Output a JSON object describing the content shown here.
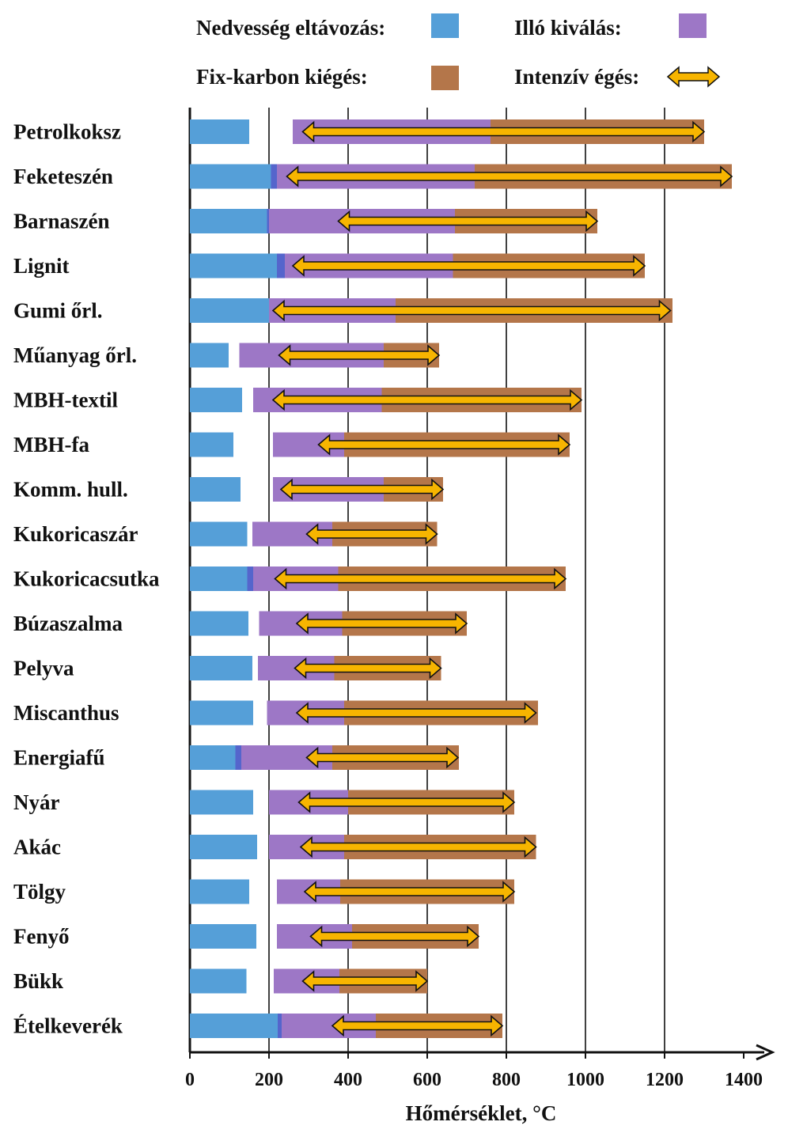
{
  "chart_data": {
    "type": "bar",
    "xlabel": "Hőmérséklet, °C",
    "xlim": [
      0,
      1400
    ],
    "xticks": [
      "0",
      "200",
      "400",
      "600",
      "800",
      "1000",
      "1200",
      "1400"
    ],
    "grid": "vertical",
    "legend_placement": "top",
    "legend": {
      "moisture": {
        "label": "Nedvesség eltávozás:",
        "color": "#559fd8"
      },
      "volatile": {
        "label": "Illó kiválás:",
        "color": "#9d77c6"
      },
      "fixcarbon": {
        "label": "Fix-karbon kiégés:",
        "color": "#b4764a"
      },
      "intensive": {
        "label": "Intenzív égés:",
        "color": "#f7b500"
      }
    },
    "colors": {
      "overlap": "#5565cc",
      "arrow_outline": "#111111"
    },
    "categories": [
      {
        "name": "Petrolkoksz",
        "moisture": [
          0,
          150
        ],
        "volatile": [
          260,
          760
        ],
        "fixcarbon": [
          760,
          1300
        ],
        "intensive": [
          285,
          1300
        ],
        "overlap": null
      },
      {
        "name": "Feketeszén",
        "moisture": [
          0,
          205
        ],
        "volatile": [
          205,
          720
        ],
        "fixcarbon": [
          720,
          1370
        ],
        "intensive": [
          245,
          1370
        ],
        "overlap": [
          205,
          220
        ]
      },
      {
        "name": "Barnaszén",
        "moisture": [
          0,
          195
        ],
        "volatile": [
          195,
          670
        ],
        "fixcarbon": [
          670,
          1030
        ],
        "intensive": [
          375,
          1030
        ],
        "overlap": [
          195,
          200
        ]
      },
      {
        "name": "Lignit",
        "moisture": [
          0,
          220
        ],
        "volatile": [
          220,
          665
        ],
        "fixcarbon": [
          665,
          1150
        ],
        "intensive": [
          260,
          1150
        ],
        "overlap": [
          220,
          240
        ]
      },
      {
        "name": "Gumi őrl.",
        "moisture": [
          0,
          200
        ],
        "volatile": [
          200,
          520
        ],
        "fixcarbon": [
          520,
          1220
        ],
        "intensive": [
          210,
          1215
        ],
        "overlap": null
      },
      {
        "name": "Műanyag őrl.",
        "moisture": [
          0,
          98
        ],
        "volatile": [
          125,
          490
        ],
        "fixcarbon": [
          490,
          630
        ],
        "intensive": [
          225,
          630
        ],
        "overlap": null
      },
      {
        "name": "MBH-textil",
        "moisture": [
          0,
          132
        ],
        "volatile": [
          160,
          485
        ],
        "fixcarbon": [
          485,
          990
        ],
        "intensive": [
          210,
          990
        ],
        "overlap": null
      },
      {
        "name": "MBH-fa",
        "moisture": [
          0,
          110
        ],
        "volatile": [
          210,
          390
        ],
        "fixcarbon": [
          390,
          960
        ],
        "intensive": [
          325,
          960
        ],
        "overlap": null
      },
      {
        "name": "Komm. hull.",
        "moisture": [
          0,
          128
        ],
        "volatile": [
          210,
          490
        ],
        "fixcarbon": [
          490,
          640
        ],
        "intensive": [
          230,
          640
        ],
        "overlap": null
      },
      {
        "name": "Kukoricaszár",
        "moisture": [
          0,
          145
        ],
        "volatile": [
          158,
          360
        ],
        "fixcarbon": [
          360,
          625
        ],
        "intensive": [
          295,
          625
        ],
        "overlap": null
      },
      {
        "name": "Kukoricacsutka",
        "moisture": [
          0,
          145
        ],
        "volatile": [
          145,
          375
        ],
        "fixcarbon": [
          375,
          950
        ],
        "intensive": [
          215,
          950
        ],
        "overlap": [
          145,
          160
        ]
      },
      {
        "name": "Búzaszalma",
        "moisture": [
          0,
          148
        ],
        "volatile": [
          175,
          385
        ],
        "fixcarbon": [
          385,
          700
        ],
        "intensive": [
          270,
          700
        ],
        "overlap": null
      },
      {
        "name": "Pelyva",
        "moisture": [
          0,
          158
        ],
        "volatile": [
          172,
          365
        ],
        "fixcarbon": [
          365,
          635
        ],
        "intensive": [
          265,
          635
        ],
        "overlap": null
      },
      {
        "name": "Miscanthus",
        "moisture": [
          0,
          160
        ],
        "volatile": [
          195,
          390
        ],
        "fixcarbon": [
          390,
          880
        ],
        "intensive": [
          270,
          875
        ],
        "overlap": null
      },
      {
        "name": "Energiafű",
        "moisture": [
          0,
          115
        ],
        "volatile": [
          115,
          360
        ],
        "fixcarbon": [
          360,
          680
        ],
        "intensive": [
          295,
          678
        ],
        "overlap": [
          115,
          130
        ]
      },
      {
        "name": "Nyár",
        "moisture": [
          0,
          160
        ],
        "volatile": [
          200,
          400
        ],
        "fixcarbon": [
          400,
          820
        ],
        "intensive": [
          275,
          820
        ],
        "overlap": null
      },
      {
        "name": "Akác",
        "moisture": [
          0,
          170
        ],
        "volatile": [
          200,
          390
        ],
        "fixcarbon": [
          390,
          875
        ],
        "intensive": [
          280,
          875
        ],
        "overlap": null
      },
      {
        "name": "Tölgy",
        "moisture": [
          0,
          150
        ],
        "volatile": [
          220,
          380
        ],
        "fixcarbon": [
          380,
          820
        ],
        "intensive": [
          290,
          820
        ],
        "overlap": null
      },
      {
        "name": "Fenyő",
        "moisture": [
          0,
          168
        ],
        "volatile": [
          220,
          410
        ],
        "fixcarbon": [
          410,
          730
        ],
        "intensive": [
          305,
          730
        ],
        "overlap": null
      },
      {
        "name": "Bükk",
        "moisture": [
          0,
          143
        ],
        "volatile": [
          212,
          378
        ],
        "fixcarbon": [
          378,
          600
        ],
        "intensive": [
          285,
          600
        ],
        "overlap": null
      },
      {
        "name": "Ételkeverék",
        "moisture": [
          0,
          222
        ],
        "volatile": [
          222,
          470
        ],
        "fixcarbon": [
          470,
          790
        ],
        "intensive": [
          360,
          790
        ],
        "overlap": [
          222,
          232
        ]
      }
    ]
  }
}
